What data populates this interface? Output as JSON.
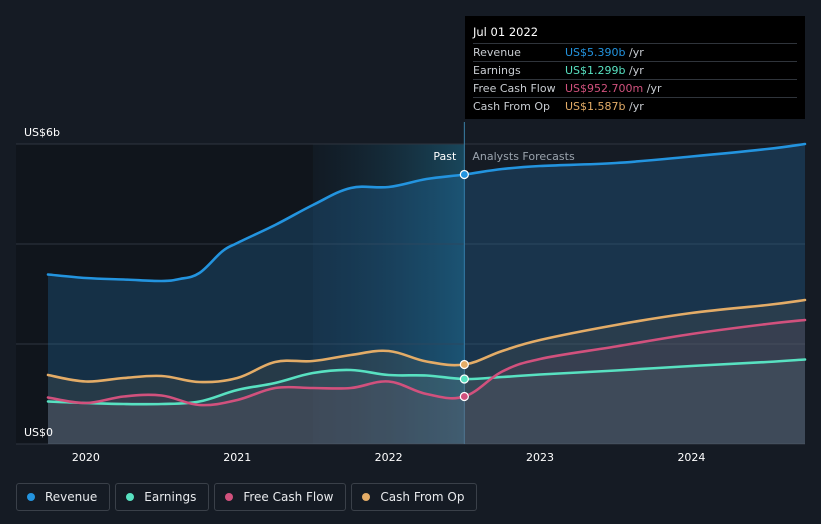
{
  "chart_data": {
    "type": "area",
    "y_unit_label_top": "US$6b",
    "y_unit_label_bottom": "US$0",
    "ylim": [
      0,
      6
    ],
    "xlim": [
      2019.75,
      2024.75
    ],
    "x_ticks": [
      {
        "value": 2020,
        "label": "2020"
      },
      {
        "value": 2021,
        "label": "2021"
      },
      {
        "value": 2022,
        "label": "2022"
      },
      {
        "value": 2023,
        "label": "2023"
      },
      {
        "value": 2024,
        "label": "2024"
      }
    ],
    "divider_x": 2022.5,
    "highlight_start_x": 2021.5,
    "past_label": "Past",
    "forecast_label": "Analysts Forecasts",
    "series": [
      {
        "name": "Revenue",
        "color": "#2394df",
        "points": [
          [
            2019.75,
            3.39
          ],
          [
            2020.0,
            3.32
          ],
          [
            2020.25,
            3.29
          ],
          [
            2020.5,
            3.26
          ],
          [
            2020.62,
            3.3
          ],
          [
            2020.75,
            3.42
          ],
          [
            2020.9,
            3.85
          ],
          [
            2021.0,
            4.02
          ],
          [
            2021.25,
            4.38
          ],
          [
            2021.5,
            4.78
          ],
          [
            2021.75,
            5.12
          ],
          [
            2022.0,
            5.14
          ],
          [
            2022.25,
            5.3
          ],
          [
            2022.5,
            5.39
          ],
          [
            2022.75,
            5.5
          ],
          [
            2023.0,
            5.56
          ],
          [
            2023.5,
            5.62
          ],
          [
            2024.0,
            5.75
          ],
          [
            2024.5,
            5.9
          ],
          [
            2024.75,
            6.0
          ]
        ]
      },
      {
        "name": "Earnings",
        "color": "#58e1c1",
        "points": [
          [
            2019.75,
            0.85
          ],
          [
            2020.0,
            0.82
          ],
          [
            2020.25,
            0.8
          ],
          [
            2020.5,
            0.8
          ],
          [
            2020.75,
            0.85
          ],
          [
            2021.0,
            1.08
          ],
          [
            2021.25,
            1.22
          ],
          [
            2021.5,
            1.42
          ],
          [
            2021.75,
            1.48
          ],
          [
            2022.0,
            1.38
          ],
          [
            2022.25,
            1.37
          ],
          [
            2022.5,
            1.3
          ],
          [
            2022.75,
            1.34
          ],
          [
            2023.0,
            1.39
          ],
          [
            2023.5,
            1.47
          ],
          [
            2024.0,
            1.56
          ],
          [
            2024.5,
            1.64
          ],
          [
            2024.75,
            1.69
          ]
        ]
      },
      {
        "name": "Free Cash Flow",
        "color": "#d1517d",
        "points": [
          [
            2019.75,
            0.93
          ],
          [
            2020.0,
            0.82
          ],
          [
            2020.25,
            0.95
          ],
          [
            2020.5,
            0.97
          ],
          [
            2020.75,
            0.78
          ],
          [
            2021.0,
            0.88
          ],
          [
            2021.25,
            1.12
          ],
          [
            2021.5,
            1.12
          ],
          [
            2021.75,
            1.12
          ],
          [
            2022.0,
            1.25
          ],
          [
            2022.25,
            1.0
          ],
          [
            2022.5,
            0.95
          ],
          [
            2022.75,
            1.45
          ],
          [
            2023.0,
            1.7
          ],
          [
            2023.5,
            1.95
          ],
          [
            2024.0,
            2.2
          ],
          [
            2024.5,
            2.4
          ],
          [
            2024.75,
            2.48
          ]
        ]
      },
      {
        "name": "Cash From Op",
        "color": "#e3ac67",
        "points": [
          [
            2019.75,
            1.38
          ],
          [
            2020.0,
            1.25
          ],
          [
            2020.25,
            1.32
          ],
          [
            2020.5,
            1.36
          ],
          [
            2020.75,
            1.24
          ],
          [
            2021.0,
            1.32
          ],
          [
            2021.25,
            1.64
          ],
          [
            2021.5,
            1.66
          ],
          [
            2021.75,
            1.78
          ],
          [
            2022.0,
            1.86
          ],
          [
            2022.25,
            1.65
          ],
          [
            2022.5,
            1.59
          ],
          [
            2022.75,
            1.86
          ],
          [
            2023.0,
            2.08
          ],
          [
            2023.5,
            2.38
          ],
          [
            2024.0,
            2.62
          ],
          [
            2024.5,
            2.78
          ],
          [
            2024.75,
            2.88
          ]
        ]
      }
    ],
    "tooltip": {
      "date": "Jul 01 2022",
      "rows": [
        {
          "label": "Revenue",
          "value": "US$5.390b",
          "unit": "/yr",
          "color": "#2394df"
        },
        {
          "label": "Earnings",
          "value": "US$1.299b",
          "unit": "/yr",
          "color": "#58e1c1"
        },
        {
          "label": "Free Cash Flow",
          "value": "US$952.700m",
          "unit": "/yr",
          "color": "#d1517d"
        },
        {
          "label": "Cash From Op",
          "value": "US$1.587b",
          "unit": "/yr",
          "color": "#e3ac67"
        }
      ]
    }
  },
  "legend": [
    {
      "label": "Revenue",
      "color": "#2394df"
    },
    {
      "label": "Earnings",
      "color": "#58e1c1"
    },
    {
      "label": "Free Cash Flow",
      "color": "#d1517d"
    },
    {
      "label": "Cash From Op",
      "color": "#e3ac67"
    }
  ]
}
